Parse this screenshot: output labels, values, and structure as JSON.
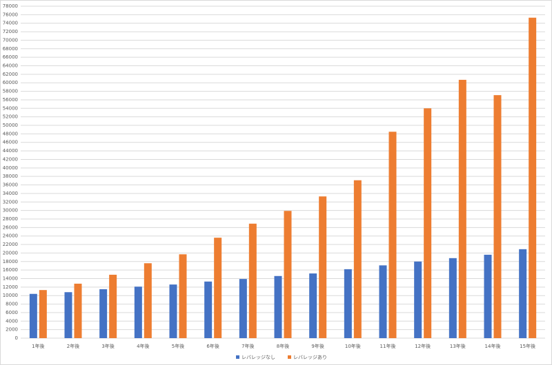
{
  "chart_data": {
    "type": "bar",
    "categories": [
      "1年後",
      "2年後",
      "3年後",
      "4年後",
      "5年後",
      "6年後",
      "7年後",
      "8年後",
      "9年後",
      "10年後",
      "11年後",
      "12年後",
      "13年後",
      "14年後",
      "15年後"
    ],
    "series": [
      {
        "name": "レバレッジなし",
        "color": "#4472c4",
        "values": [
          10400,
          10800,
          11500,
          12100,
          12600,
          13300,
          13900,
          14600,
          15200,
          16200,
          17100,
          18000,
          18800,
          19600,
          20900
        ]
      },
      {
        "name": "レバレッジあり",
        "color": "#ed7d31",
        "values": [
          11300,
          12800,
          14900,
          17600,
          19700,
          23600,
          26900,
          29900,
          33300,
          37100,
          48500,
          54000,
          60700,
          57100,
          75300
        ]
      }
    ],
    "ylim": [
      0,
      78000
    ],
    "yticks": [
      0,
      2000,
      4000,
      6000,
      8000,
      10000,
      12000,
      14000,
      16000,
      18000,
      20000,
      22000,
      24000,
      26000,
      28000,
      30000,
      32000,
      34000,
      36000,
      38000,
      40000,
      42000,
      44000,
      46000,
      48000,
      50000,
      52000,
      54000,
      56000,
      58000,
      60000,
      62000,
      64000,
      66000,
      68000,
      70000,
      72000,
      74000,
      76000,
      78000
    ],
    "grid": true,
    "legend": "bottom"
  }
}
